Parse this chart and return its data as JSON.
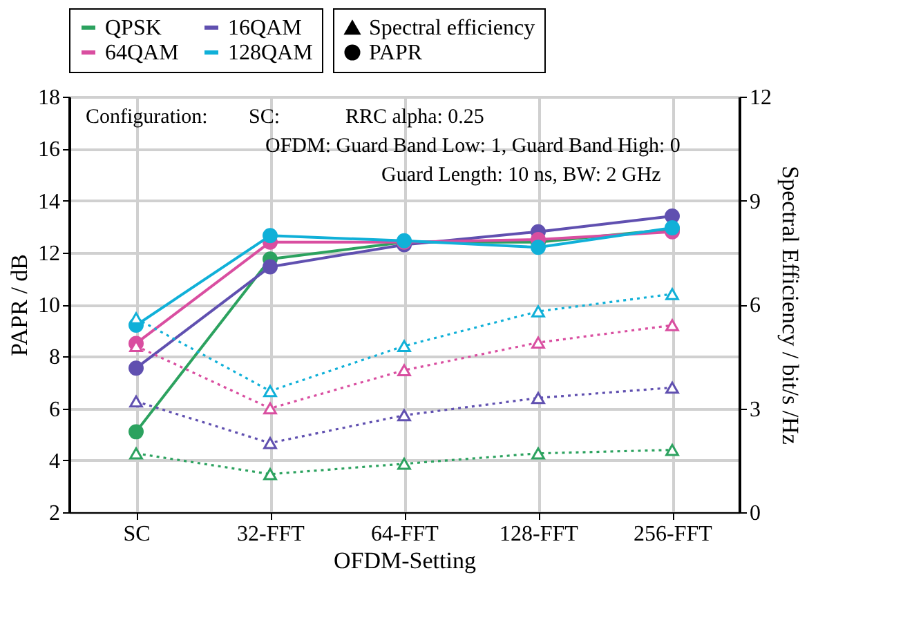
{
  "chart_data": {
    "type": "line",
    "xlabel": "OFDM-Setting",
    "ylabel": "PAPR / dB",
    "y2label": "Spectral Efficiency / bit/s /Hz",
    "categories": [
      "SC",
      "32-FFT",
      "64-FFT",
      "128-FFT",
      "256-FFT"
    ],
    "ylim": [
      2,
      18
    ],
    "yticks": [
      2,
      4,
      6,
      8,
      10,
      12,
      14,
      16,
      18
    ],
    "y2lim": [
      0,
      12
    ],
    "y2ticks": [
      0,
      3,
      6,
      9,
      12
    ],
    "grid": true,
    "legend": "top",
    "annotations": [
      "Configuration:",
      "SC:",
      "RRC alpha: 0.25",
      "OFDM:  Guard Band Low: 1, Guard Band High: 0",
      "Guard Length: 10 ns, BW: 2 GHz",
      "Spectral efficiency",
      "PAPR"
    ],
    "series": [
      {
        "color": "#2ca25f",
        "axis": "y2",
        "marker": "triangle",
        "line_style": "dotted",
        "values": [
          1.7,
          1.1,
          1.4,
          1.7,
          1.8
        ]
      },
      {
        "color": "#6050b0",
        "axis": "y2",
        "marker": "triangle",
        "line_style": "dotted",
        "values": [
          3.2,
          2.0,
          2.8,
          3.3,
          3.6
        ]
      },
      {
        "color": "#d94ea0",
        "axis": "y2",
        "marker": "triangle",
        "line_style": "dotted",
        "values": [
          4.8,
          3.0,
          4.1,
          4.9,
          5.4
        ]
      },
      {
        "color": "#10b0d8",
        "axis": "y2",
        "marker": "triangle",
        "line_style": "dotted",
        "values": [
          5.6,
          3.5,
          4.8,
          5.8,
          6.3
        ]
      },
      {
        "name": "QPSK",
        "color": "#2ca25f",
        "marker": "circle",
        "line_style": "solid",
        "values": [
          5.1,
          11.75,
          12.4,
          12.4,
          12.9
        ]
      },
      {
        "name": "16QAM",
        "color": "#6050b0",
        "marker": "circle",
        "line_style": "solid",
        "values": [
          7.55,
          11.45,
          12.3,
          12.8,
          13.4
        ]
      },
      {
        "name": "64QAM",
        "color": "#d94ea0",
        "marker": "circle",
        "line_style": "solid",
        "values": [
          8.5,
          12.4,
          12.4,
          12.5,
          12.8
        ]
      },
      {
        "name": "128QAM",
        "color": "#10b0d8",
        "marker": "circle",
        "line_style": "solid",
        "values": [
          9.2,
          12.65,
          12.45,
          12.2,
          12.95
        ]
      }
    ]
  }
}
